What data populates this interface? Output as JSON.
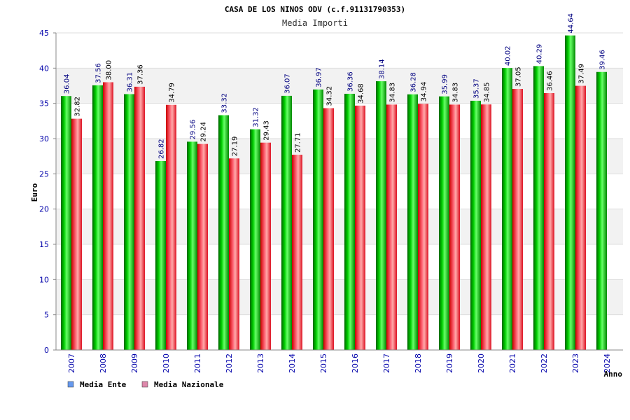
{
  "chart_data": {
    "type": "bar",
    "title": "CASA DE LOS NINOS ODV (c.f.91131790353)",
    "subtitle": "Media Importi",
    "xlabel": "Anno",
    "ylabel": "Euro",
    "ylim": [
      0,
      45
    ],
    "yticks": [
      0,
      5,
      10,
      15,
      20,
      25,
      30,
      35,
      40,
      45
    ],
    "grid": true,
    "legend_position": "bottom-left",
    "categories": [
      "2007",
      "2008",
      "2009",
      "2010",
      "2011",
      "2012",
      "2013",
      "2014",
      "2015",
      "2016",
      "2017",
      "2018",
      "2019",
      "2020",
      "2021",
      "2022",
      "2023",
      "2024"
    ],
    "series": [
      {
        "name": "Media Ente",
        "color": "#00aa00",
        "legend_color": "#6699ee",
        "values": [
          36.04,
          37.56,
          36.31,
          26.82,
          29.56,
          33.32,
          31.32,
          36.07,
          36.97,
          36.36,
          38.14,
          36.28,
          35.99,
          35.37,
          40.02,
          40.29,
          44.64,
          39.46
        ],
        "labels": [
          "36.04",
          "37.56",
          "36.31",
          "26.82",
          "29.56",
          "33.32",
          "31.32",
          "36.07",
          "36.97",
          "36.36",
          "38.14",
          "36.28",
          "35.99",
          "35.37",
          "40.02",
          "40.29",
          "44.64",
          "39.46"
        ]
      },
      {
        "name": "Media Nazionale",
        "color": "#ee2233",
        "legend_color": "#dd88aa",
        "values": [
          32.82,
          38.0,
          37.36,
          34.79,
          29.24,
          27.19,
          29.43,
          27.71,
          34.32,
          34.68,
          34.83,
          34.94,
          34.83,
          34.85,
          37.05,
          36.46,
          37.49,
          null
        ],
        "labels": [
          "32.82",
          "38.00",
          "37.36",
          "34.79",
          "29.24",
          "27.19",
          "29.43",
          "27.71",
          "34.32",
          "34.68",
          "34.83",
          "34.94",
          "34.83",
          "34.85",
          "37.05",
          "36.46",
          "37.49",
          ""
        ]
      }
    ]
  }
}
